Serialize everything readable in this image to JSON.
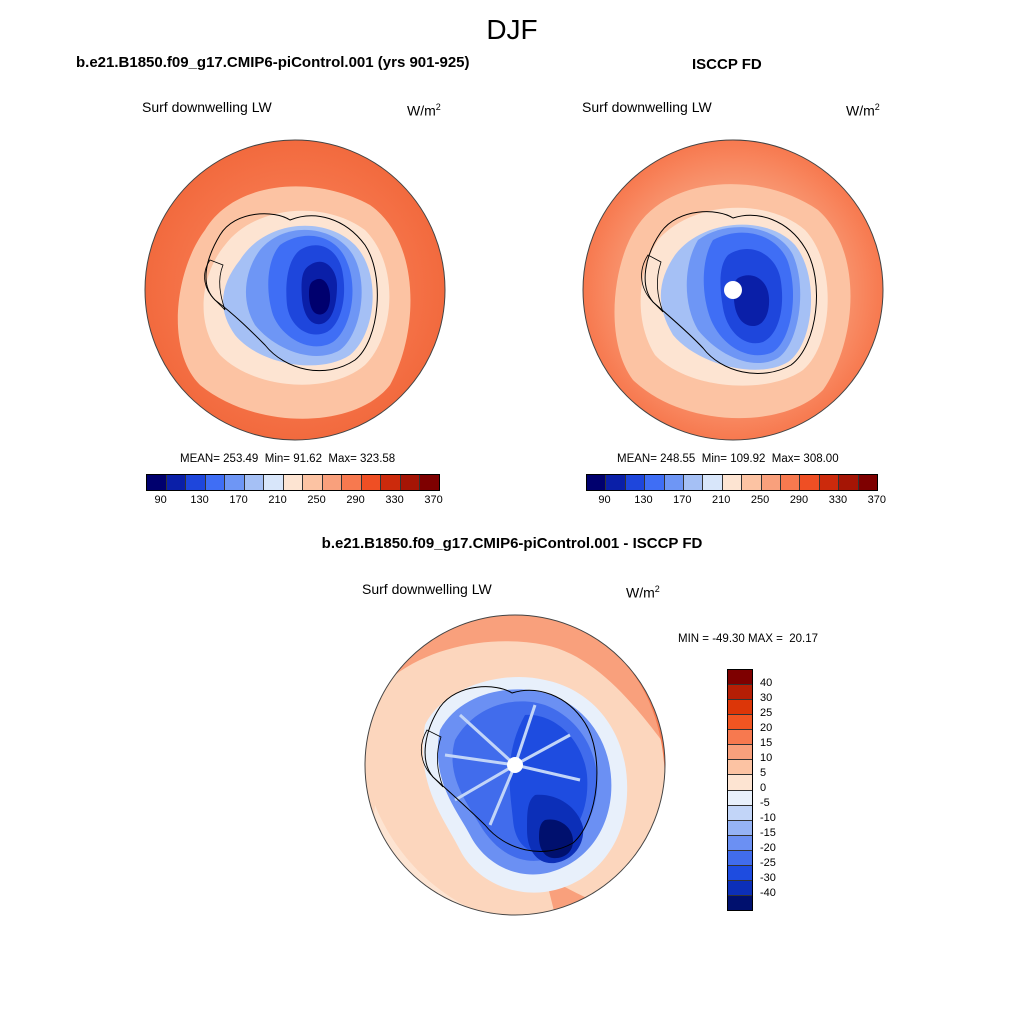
{
  "figure": {
    "season": "DJF"
  },
  "panels": [
    {
      "id": "model",
      "title": "b.e21.B1850.f09_g17.CMIP6-piControl.001 (yrs 901-925)",
      "variable": "Surf downwelling LW",
      "units_base": "W/m",
      "units_exp": "2",
      "mean_label": "MEAN=",
      "mean": "253.49",
      "min_label": "Min=",
      "min": "91.62",
      "max_label": "Max=",
      "max": "323.58",
      "colorbar_ticks": [
        "90",
        "130",
        "170",
        "210",
        "250",
        "290",
        "330",
        "370"
      ],
      "pole_missing": false
    },
    {
      "id": "obs",
      "title": "ISCCP FD",
      "variable": "Surf downwelling LW",
      "units_base": "W/m",
      "units_exp": "2",
      "mean_label": "MEAN=",
      "mean": "248.55",
      "min_label": "Min=",
      "min": "109.92",
      "max_label": "Max=",
      "max": "308.00",
      "colorbar_ticks": [
        "90",
        "130",
        "170",
        "210",
        "250",
        "290",
        "330",
        "370"
      ],
      "pole_missing": true
    }
  ],
  "difference": {
    "title": "b.e21.B1850.f09_g17.CMIP6-piControl.001 - ISCCP FD",
    "variable": "Surf downwelling LW",
    "units_base": "W/m",
    "units_exp": "2",
    "min_label": "MIN =",
    "min": "-49.30",
    "max_label": "MAX =",
    "max": "20.17",
    "colorbar_ticks": [
      "40",
      "30",
      "25",
      "20",
      "15",
      "10",
      "5",
      "0",
      "-5",
      "-10",
      "-15",
      "-20",
      "-25",
      "-30",
      "-40"
    ],
    "pole_missing": true
  },
  "colors": {
    "abs_scale": [
      "#00006e",
      "#0a1fa8",
      "#1e46dc",
      "#3f6ef5",
      "#6e96f5",
      "#a5c0f5",
      "#d8e6fa",
      "#fde4d2",
      "#fcc3a3",
      "#f9a07c",
      "#f7794f",
      "#ef4f24",
      "#cc2a0c",
      "#a51505",
      "#7e0000"
    ],
    "diff_scale": [
      "#7e0000",
      "#b51e05",
      "#dc3608",
      "#f15522",
      "#f7794f",
      "#f9a07c",
      "#fcc3a3",
      "#fde4d2",
      "#e8f0fb",
      "#c2d5f8",
      "#95b3f5",
      "#6b90f3",
      "#416cec",
      "#1e4ce0",
      "#0c2fb8",
      "#00106e"
    ],
    "coastline": "#000000"
  }
}
